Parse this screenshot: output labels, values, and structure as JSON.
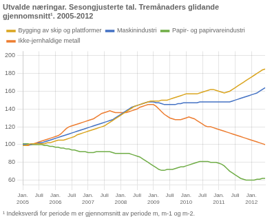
{
  "chart_data": {
    "type": "line",
    "title": "Utvalde næringar. Sesongjusterte tal. Tremånaders glidande\ngjennomsnitt¹. 2005-2012",
    "footnote": "¹ Indeksverdi for periode m er gjennomsnitt av periode m, m-1 og m-2.",
    "categories": [
      "Jan.\n2005",
      null,
      null,
      null,
      null,
      null,
      "Juli",
      null,
      null,
      null,
      null,
      null,
      "Jan.\n2006",
      null,
      null,
      null,
      null,
      null,
      "Juli",
      null,
      null,
      null,
      null,
      null,
      "Jan.\n2007",
      null,
      null,
      null,
      null,
      null,
      "Juli",
      null,
      null,
      null,
      null,
      null,
      "Jan.\n2008",
      null,
      null,
      null,
      null,
      null,
      "Juli",
      null,
      null,
      null,
      null,
      null,
      "Jan.\n2009",
      null,
      null,
      null,
      null,
      null,
      "Juli",
      null,
      null,
      null,
      null,
      null,
      "Jan.\n2010",
      null,
      null,
      null,
      null,
      null,
      "Juli",
      null,
      null,
      null,
      null,
      null,
      "Jan.\n2011",
      null,
      null,
      null,
      null,
      null,
      "Juli",
      null,
      null,
      null,
      null,
      null,
      "Jan.\n2012",
      null,
      null,
      null,
      null,
      null
    ],
    "ylim": [
      55,
      205
    ],
    "yticks": [
      60,
      80,
      100,
      120,
      140,
      160,
      180,
      200
    ],
    "grid": true,
    "legend": "top",
    "series": [
      {
        "name": "Bygging av skip og plattformer",
        "color": "#DAA520",
        "values": [
          99,
          99,
          100,
          101,
          101,
          101,
          101,
          101,
          101,
          102,
          102,
          103,
          104,
          105,
          105,
          105,
          106,
          107,
          108,
          109,
          111,
          112,
          113,
          114,
          115,
          116,
          117,
          118,
          119,
          120,
          121,
          123,
          125,
          127,
          129,
          131,
          133,
          135,
          137,
          139,
          141,
          143,
          144,
          145,
          146,
          147,
          148,
          149,
          149,
          149,
          149,
          150,
          150,
          150,
          151,
          152,
          153,
          154,
          155,
          156,
          157,
          157,
          157,
          157,
          157,
          158,
          159,
          160,
          161,
          162,
          162,
          161,
          160,
          159,
          158,
          159,
          160,
          162,
          164,
          166,
          168,
          170,
          172,
          174,
          176,
          178,
          180,
          182,
          184,
          185
        ]
      },
      {
        "name": "Maskinindustri",
        "color": "#4472C4",
        "values": [
          100,
          100,
          100,
          100,
          101,
          101,
          102,
          102,
          103,
          104,
          105,
          106,
          107,
          108,
          109,
          110,
          111,
          112,
          113,
          114,
          115,
          116,
          117,
          118,
          119,
          120,
          121,
          122,
          123,
          124,
          125,
          126,
          127,
          128,
          130,
          132,
          134,
          136,
          138,
          140,
          142,
          143,
          144,
          145,
          146,
          147,
          148,
          148,
          148,
          147,
          147,
          146,
          145,
          145,
          145,
          145,
          145,
          146,
          146,
          147,
          147,
          147,
          147,
          147,
          147,
          148,
          148,
          148,
          148,
          148,
          148,
          148,
          148,
          148,
          148,
          148,
          148,
          149,
          150,
          151,
          152,
          153,
          154,
          155,
          156,
          157,
          158,
          160,
          162,
          164
        ]
      },
      {
        "name": "Papir- og papirvareindustri",
        "color": "#70AD47",
        "values": [
          101,
          101,
          101,
          100,
          100,
          100,
          100,
          100,
          99,
          99,
          98,
          98,
          97,
          97,
          96,
          96,
          95,
          95,
          94,
          94,
          93,
          92,
          92,
          92,
          91,
          91,
          91,
          92,
          92,
          92,
          92,
          92,
          92,
          91,
          90,
          90,
          90,
          90,
          90,
          90,
          89,
          88,
          87,
          86,
          84,
          82,
          80,
          78,
          76,
          74,
          72,
          71,
          71,
          72,
          72,
          72,
          73,
          74,
          75,
          75,
          76,
          77,
          78,
          79,
          80,
          81,
          81,
          81,
          81,
          80,
          80,
          80,
          79,
          78,
          76,
          73,
          70,
          68,
          66,
          64,
          62,
          61,
          60,
          60,
          60,
          60,
          61,
          61,
          62,
          62
        ]
      },
      {
        "name": "Ikke-jernhaldige metall",
        "color": "#ED7D31",
        "values": [
          99,
          99,
          99,
          100,
          101,
          102,
          103,
          104,
          105,
          106,
          107,
          108,
          109,
          110,
          112,
          115,
          118,
          120,
          121,
          122,
          123,
          124,
          125,
          126,
          127,
          128,
          129,
          131,
          133,
          135,
          136,
          137,
          138,
          137,
          136,
          136,
          136,
          136,
          136,
          137,
          138,
          139,
          140,
          142,
          143,
          144,
          145,
          145,
          145,
          143,
          140,
          137,
          134,
          132,
          130,
          129,
          128,
          128,
          128,
          129,
          130,
          131,
          130,
          129,
          127,
          125,
          123,
          121,
          120,
          120,
          119,
          118,
          117,
          116,
          115,
          114,
          113,
          112,
          111,
          110,
          109,
          108,
          107,
          106,
          105,
          104,
          103,
          102,
          101,
          100
        ]
      }
    ]
  }
}
